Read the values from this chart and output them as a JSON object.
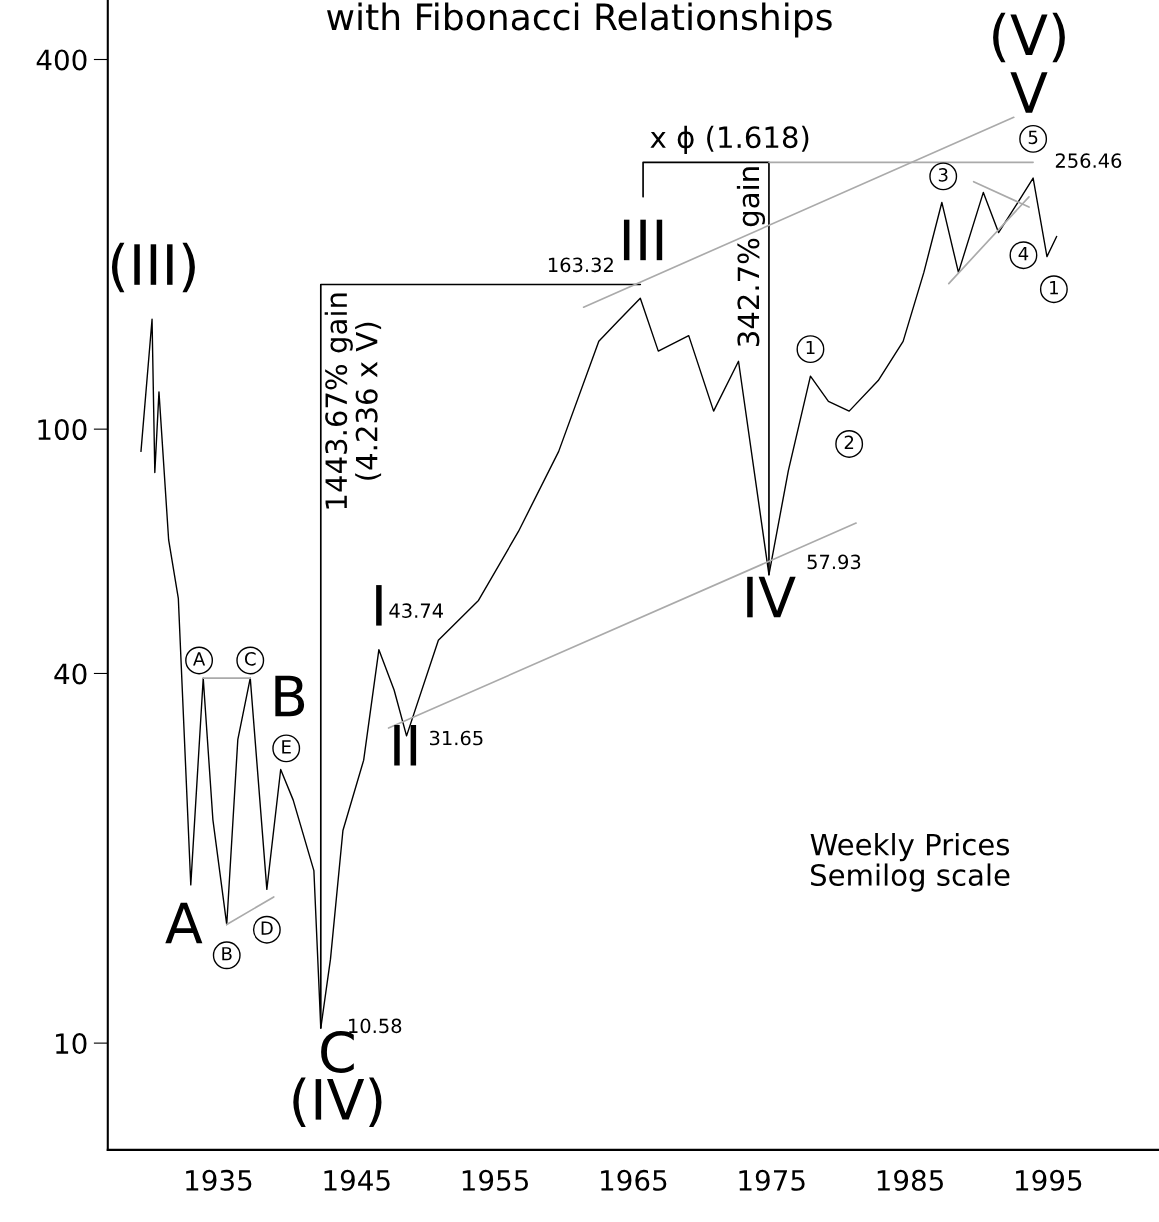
{
  "chart_data": {
    "type": "line",
    "title": "with Fibonacci Relationships",
    "log": "y",
    "grid": false,
    "xlim": [
      1927,
      2003
    ],
    "xticks": [
      1935,
      1945,
      1955,
      1965,
      1975,
      1985,
      1995
    ],
    "ylim": [
      6.7,
      500
    ],
    "yticks": [
      10,
      40,
      100,
      400
    ],
    "series": [
      {
        "color": "#000000",
        "x": [
          1929.4,
          1930.2,
          1930.4,
          1930.7,
          1931.4,
          1932.1,
          1933.0,
          1933.9,
          1934.6,
          1935.6,
          1936.4,
          1937.3,
          1938.5,
          1939.5,
          1940.4,
          1941.9,
          1942.4,
          1943.1,
          1944.0,
          1945.5,
          1946.6,
          1947.7,
          1948.6,
          1950.9,
          1953.8,
          1956.7,
          1959.6,
          1962.5,
          1963.9,
          1965.5,
          1966.8,
          1969.0,
          1970.8,
          1972.6,
          1974.8,
          1976.2,
          1977.8,
          1979.1,
          1980.6,
          1982.7,
          1984.5,
          1986.0,
          1987.3,
          1988.5,
          1990.3,
          1991.4,
          1992.8,
          1993.9,
          1994.9,
          1995.6
        ],
        "values": [
          92,
          151,
          85,
          115,
          66,
          53,
          18.1,
          39.3,
          23.1,
          15.6,
          31.2,
          39.3,
          17.8,
          27.9,
          24.9,
          19.1,
          10.58,
          13.7,
          22.2,
          28.9,
          43.74,
          37.6,
          31.65,
          45.3,
          52.6,
          68.2,
          92,
          139,
          150,
          163.32,
          134,
          142,
          107,
          129,
          57.93,
          85.5,
          122,
          111,
          107,
          120,
          139,
          180,
          234,
          180,
          243,
          209,
          234,
          256.46,
          191,
          206
        ]
      },
      {
        "type": "line",
        "color": "#000000",
        "x": [
          1942.4,
          1942.4,
          1965.5
        ],
        "values": [
          10.58,
          172,
          172
        ]
      },
      {
        "type": "line",
        "color": "#000000",
        "x": [
          1965.7,
          1965.7,
          1974.8,
          1974.8
        ],
        "values": [
          239,
          272,
          272,
          57.93
        ]
      },
      {
        "type": "line",
        "color": "#aaaaaa",
        "x": [
          1974.8,
          1993.9
        ],
        "values": [
          272,
          272
        ]
      },
      {
        "type": "line",
        "color": "#aaaaaa",
        "x": [
          1961.4,
          1992.5
        ],
        "values": [
          158,
          322
        ]
      },
      {
        "type": "line",
        "color": "#aaaaaa",
        "x": [
          1947.3,
          1981.1
        ],
        "values": [
          32.6,
          70.3
        ]
      },
      {
        "type": "line",
        "color": "#aaaaaa",
        "x": [
          1987.8,
          1993.6
        ],
        "values": [
          172.6,
          239
        ]
      },
      {
        "type": "line",
        "color": "#aaaaaa",
        "x": [
          1989.6,
          1993.6
        ],
        "values": [
          253,
          230
        ]
      },
      {
        "type": "line",
        "color": "#aaaaaa",
        "x": [
          1933.9,
          1937.3
        ],
        "values": [
          39.3,
          39.3
        ]
      },
      {
        "type": "line",
        "color": "#aaaaaa",
        "x": [
          1935.6,
          1939.0
        ],
        "values": [
          15.6,
          17.3
        ]
      }
    ],
    "annotations": [
      "(III)",
      "A",
      "B",
      "C",
      "(IV)",
      "10.58",
      "I",
      "43.74",
      "II",
      "31.65",
      "III",
      "163.32",
      "IV",
      "57.93",
      "V",
      "(V)",
      "256.46",
      "x ϕ (1.618)",
      "1443.67% gain\n(4.236 x V)",
      "342.7% gain",
      "Weekly Prices\nSemilog scale",
      "A",
      "C",
      "E",
      "B",
      "D",
      "1",
      "2",
      "3",
      "5",
      "4",
      "1"
    ]
  }
}
